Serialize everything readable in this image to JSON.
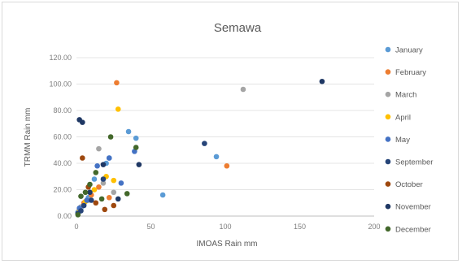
{
  "chart_data": {
    "type": "scatter",
    "title": "Semawa",
    "xlabel": "IMOAS Rain mm",
    "ylabel": "TRMM Rain mm",
    "xlim": [
      0,
      200
    ],
    "ylim": [
      0,
      120
    ],
    "x_ticks": [
      0,
      50,
      100,
      150,
      200
    ],
    "x_tick_labels": [
      "0",
      "50",
      "100",
      "150",
      "200"
    ],
    "y_ticks": [
      0,
      20,
      40,
      60,
      80,
      100,
      120
    ],
    "y_tick_labels": [
      "0.00",
      "20.00",
      "40.00",
      "60.00",
      "80.00",
      "100.00",
      "120.00"
    ],
    "grid": "horizontal",
    "legend_position": "right",
    "series": [
      {
        "name": "January",
        "color": "#5b9bd5",
        "points": [
          [
            1,
            3
          ],
          [
            3,
            6
          ],
          [
            5,
            9
          ],
          [
            8,
            14
          ],
          [
            12,
            28
          ],
          [
            20,
            40
          ],
          [
            22,
            44
          ],
          [
            35,
            64
          ],
          [
            40,
            59
          ],
          [
            58,
            16
          ],
          [
            94,
            45
          ]
        ]
      },
      {
        "name": "February",
        "color": "#ed7d31",
        "points": [
          [
            2,
            5
          ],
          [
            5,
            10
          ],
          [
            10,
            16
          ],
          [
            15,
            22
          ],
          [
            22,
            14
          ],
          [
            27,
            101
          ],
          [
            101,
            38
          ]
        ]
      },
      {
        "name": "March",
        "color": "#a5a5a5",
        "points": [
          [
            3,
            7
          ],
          [
            8,
            12
          ],
          [
            15,
            51
          ],
          [
            18,
            25
          ],
          [
            25,
            18
          ],
          [
            112,
            96
          ]
        ]
      },
      {
        "name": "April",
        "color": "#ffc000",
        "points": [
          [
            2,
            4
          ],
          [
            6,
            11
          ],
          [
            12,
            20
          ],
          [
            20,
            30
          ],
          [
            25,
            27
          ],
          [
            28,
            81
          ]
        ]
      },
      {
        "name": "May",
        "color": "#4472c4",
        "points": [
          [
            2,
            6
          ],
          [
            7,
            12
          ],
          [
            14,
            38
          ],
          [
            22,
            44
          ],
          [
            30,
            25
          ],
          [
            39,
            49
          ]
        ]
      },
      {
        "name": "September",
        "color": "#264478",
        "points": [
          [
            1,
            2
          ],
          [
            3,
            4
          ],
          [
            5,
            8
          ],
          [
            10,
            12
          ],
          [
            18,
            28
          ],
          [
            86,
            55
          ]
        ]
      },
      {
        "name": "October",
        "color": "#9e480e",
        "points": [
          [
            4,
            44
          ],
          [
            8,
            22
          ],
          [
            13,
            10
          ],
          [
            19,
            5
          ],
          [
            25,
            8
          ]
        ]
      },
      {
        "name": "November",
        "color": "#1f3864",
        "points": [
          [
            2,
            73
          ],
          [
            4,
            71
          ],
          [
            9,
            18
          ],
          [
            18,
            39
          ],
          [
            28,
            13
          ],
          [
            42,
            39
          ],
          [
            165,
            102
          ]
        ]
      },
      {
        "name": "December",
        "color": "#43682b",
        "points": [
          [
            1,
            1
          ],
          [
            3,
            15
          ],
          [
            6,
            18
          ],
          [
            9,
            24
          ],
          [
            13,
            33
          ],
          [
            17,
            13
          ],
          [
            23,
            60
          ],
          [
            34,
            17
          ],
          [
            40,
            52
          ]
        ]
      }
    ]
  }
}
